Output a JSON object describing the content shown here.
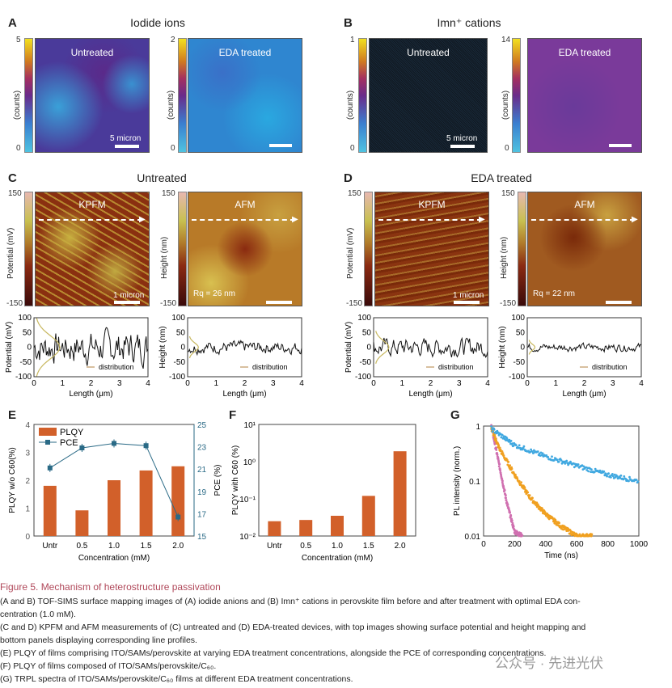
{
  "panels": {
    "A": {
      "label": "A",
      "title": "Iodide ions",
      "cb_unit": "(counts)",
      "left": {
        "label": "Untreated",
        "cb_max": "5",
        "cb_min": "0",
        "scale": "5 micron"
      },
      "right": {
        "label": "EDA treated",
        "cb_max": "2",
        "cb_min": "0"
      }
    },
    "B": {
      "label": "B",
      "title": "Imn⁺ cations",
      "cb_unit": "(counts)",
      "left": {
        "label": "Untreated",
        "cb_max": "1",
        "cb_min": "0",
        "scale": "5 micron"
      },
      "right": {
        "label": "EDA treated",
        "cb_max": "14",
        "cb_min": "0"
      }
    },
    "C": {
      "label": "C",
      "title": "Untreated",
      "kpfm": "KPFM",
      "afm": "AFM",
      "pot_axis": "Potential (mV)",
      "height_axis": "Height (nm)",
      "cb_max": "150",
      "cb_min": "-150",
      "scale": "1 micron",
      "rq": "Rq = 26 nm"
    },
    "D": {
      "label": "D",
      "title": "EDA treated",
      "kpfm": "KPFM",
      "afm": "AFM",
      "pot_axis": "Potential (mV)",
      "height_axis": "Height (nm)",
      "cb_max": "150",
      "cb_min": "-150",
      "scale": "1 micron",
      "rq": "Rq = 22 nm"
    },
    "profiles": {
      "xlabel": "Length (μm)",
      "legend": "distribution",
      "xticks": [
        "0",
        "1",
        "2",
        "3",
        "4"
      ],
      "yticks": [
        "100",
        "50",
        "0",
        "-50",
        "-100"
      ]
    },
    "E": {
      "label": "E"
    },
    "F": {
      "label": "F"
    },
    "G": {
      "label": "G"
    }
  },
  "chart_data": [
    {
      "type": "bar",
      "id": "E",
      "categories": [
        "Untr",
        "0.5",
        "1.0",
        "1.5",
        "2.0"
      ],
      "series": [
        {
          "name": "PLQY",
          "values": [
            1.8,
            0.92,
            2.0,
            2.35,
            2.5
          ],
          "color": "#d2602a"
        },
        {
          "name": "PCE",
          "type": "line",
          "axis": "right",
          "values": [
            21.1,
            22.9,
            23.3,
            23.1,
            16.7
          ],
          "color": "#2a6a86"
        }
      ],
      "xlabel": "Concentration (mM)",
      "ylabel": "PLQY w/o C60(%)",
      "y2label": "PCE (%)",
      "ylim": [
        0,
        4
      ],
      "y2lim": [
        15,
        25
      ],
      "yticks": [
        "0",
        "1",
        "2",
        "3",
        "4"
      ],
      "y2ticks": [
        "15",
        "17",
        "19",
        "21",
        "23",
        "25"
      ],
      "legend": "top-left"
    },
    {
      "type": "bar",
      "id": "F",
      "categories": [
        "Untr",
        "0.5",
        "1.0",
        "1.5",
        "2.0"
      ],
      "values": [
        0.025,
        0.027,
        0.035,
        0.12,
        1.9
      ],
      "xlabel": "Concentration (mM)",
      "ylabel": "PLQY with C60 (%)",
      "yscale": "log",
      "ylim": [
        0.01,
        10
      ],
      "yticks": [
        "10⁻²",
        "10⁻¹",
        "10⁰",
        "10¹"
      ],
      "color": "#d2602a"
    },
    {
      "type": "scatter",
      "id": "G",
      "xlabel": "Time (ns)",
      "ylabel": "PL intensity (norm.)",
      "yscale": "log",
      "xlim": [
        0,
        1000
      ],
      "ylim": [
        0.01,
        1
      ],
      "xticks": [
        "0",
        "200",
        "400",
        "600",
        "800",
        "1000"
      ],
      "yticks": [
        "0.01",
        "0.1",
        "1"
      ],
      "series": [
        {
          "color": "#d070b0",
          "x": [
            50,
            100,
            150,
            200,
            250
          ],
          "y": [
            1,
            0.2,
            0.04,
            0.012,
            0.01
          ]
        },
        {
          "color": "#f0a020",
          "x": [
            50,
            100,
            200,
            300,
            400,
            500,
            600,
            700
          ],
          "y": [
            0.9,
            0.4,
            0.13,
            0.05,
            0.025,
            0.015,
            0.01,
            0.01
          ]
        },
        {
          "color": "#40a8e0",
          "x": [
            50,
            200,
            400,
            600,
            800,
            1000
          ],
          "y": [
            0.9,
            0.45,
            0.28,
            0.19,
            0.13,
            0.1
          ]
        }
      ]
    }
  ],
  "caption": {
    "title": "Figure 5.  Mechanism of heterostructure passivation",
    "lines": [
      "(A and B) TOF-SIMS surface mapping images of (A) iodide anions and (B) Imn⁺ cations in perovskite film before and after treatment with optimal EDA con-",
      "centration (1.0 mM).",
      "(C and D) KPFM and AFM measurements of (C) untreated and (D) EDA-treated devices, with top images showing surface potential and height mapping and",
      "bottom panels displaying corresponding line profiles.",
      "(E) PLQY of films comprising ITO/SAMs/perovskite at varying EDA treatment concentrations, alongside the PCE of corresponding concentrations.",
      "(F) PLQY of films composed of ITO/SAMs/perovskite/C₆₀.",
      "(G) TRPL spectra of ITO/SAMs/perovskite/C₆₀ films at different EDA treatment concentrations."
    ],
    "title_color": "#b0485a"
  },
  "watermark": "公众号 · 先进光伏"
}
